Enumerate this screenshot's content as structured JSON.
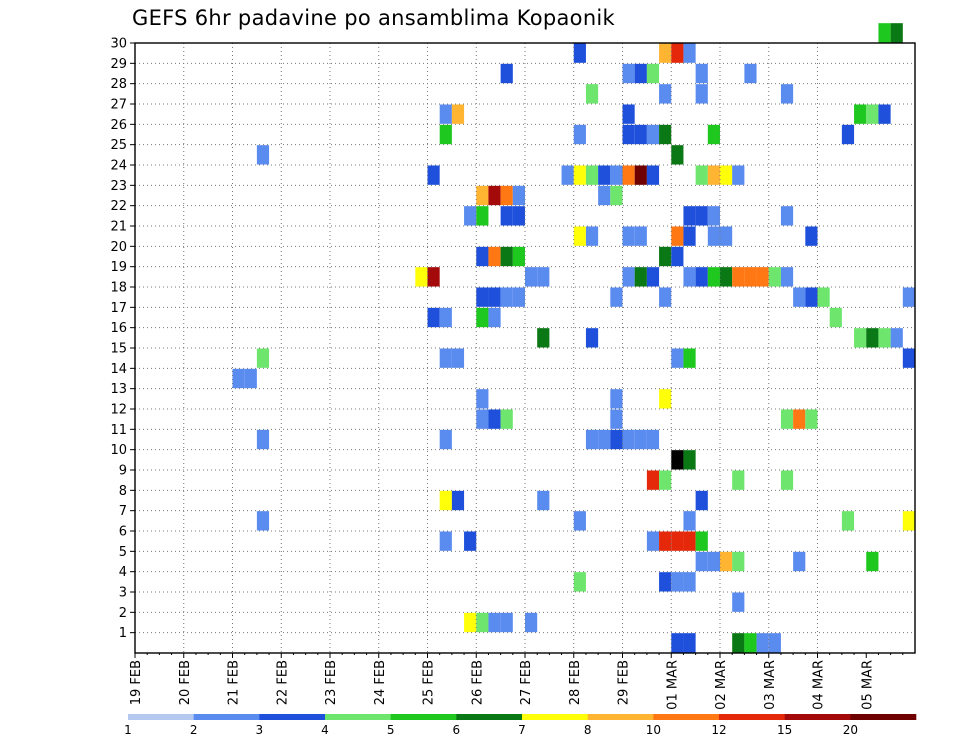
{
  "title": "GEFS 6hr padavine po ansamblima Kopaonik",
  "chart_data": {
    "type": "heatmap",
    "title": "GEFS 6hr padavine po ansamblima Kopaonik",
    "x_ticks": [
      "19 FEB",
      "20 FEB",
      "21 FEB",
      "22 FEB",
      "23 FEB",
      "24 FEB",
      "25 FEB",
      "26 FEB",
      "27 FEB",
      "28 FEB",
      "29 FEB",
      "01 MAR",
      "02 MAR",
      "03 MAR",
      "04 MAR",
      "05 MAR"
    ],
    "x_range": [
      0,
      64
    ],
    "x_step_hours": 6,
    "y_ticks": [
      1,
      2,
      3,
      4,
      5,
      6,
      7,
      8,
      9,
      10,
      11,
      12,
      13,
      14,
      15,
      16,
      17,
      18,
      19,
      20,
      21,
      22,
      23,
      24,
      25,
      26,
      27,
      28,
      29,
      30
    ],
    "y_range": [
      0,
      30
    ],
    "grid": true,
    "color_scale": {
      "labels": [
        "1",
        "2",
        "3",
        "4",
        "5",
        "6",
        "7",
        "8",
        "10",
        "12",
        "15",
        "20"
      ],
      "colors": [
        "#b4c8f0",
        "#5a8cf0",
        "#1e50dc",
        "#6ee66e",
        "#1ec81e",
        "#0a7814",
        "#ffff0a",
        "#ffb432",
        "#ff7814",
        "#e6280a",
        "#a50a0a",
        "#6e0000"
      ]
    },
    "cells_format": "[ensemble_member, step, class]",
    "cells": [
      [
        30,
        61,
        4
      ],
      [
        30,
        62,
        5
      ],
      [
        29,
        36,
        2
      ],
      [
        29,
        43,
        7
      ],
      [
        29,
        44,
        9
      ],
      [
        29,
        45,
        1
      ],
      [
        28,
        30,
        2
      ],
      [
        28,
        40,
        1
      ],
      [
        28,
        41,
        2
      ],
      [
        28,
        42,
        3
      ],
      [
        28,
        46,
        1
      ],
      [
        28,
        50,
        1
      ],
      [
        27,
        37,
        3
      ],
      [
        27,
        43,
        1
      ],
      [
        27,
        46,
        1
      ],
      [
        27,
        53,
        1
      ],
      [
        26,
        25,
        1
      ],
      [
        26,
        26,
        7
      ],
      [
        26,
        40,
        2
      ],
      [
        26,
        59,
        4
      ],
      [
        26,
        60,
        3
      ],
      [
        26,
        61,
        2
      ],
      [
        25,
        25,
        4
      ],
      [
        25,
        36,
        1
      ],
      [
        25,
        40,
        2
      ],
      [
        25,
        41,
        2
      ],
      [
        25,
        42,
        1
      ],
      [
        25,
        43,
        5
      ],
      [
        25,
        47,
        4
      ],
      [
        25,
        58,
        2
      ],
      [
        24,
        10,
        1
      ],
      [
        24,
        44,
        5
      ],
      [
        23,
        24,
        2
      ],
      [
        23,
        35,
        1
      ],
      [
        23,
        36,
        6
      ],
      [
        23,
        37,
        3
      ],
      [
        23,
        38,
        2
      ],
      [
        23,
        39,
        1
      ],
      [
        23,
        40,
        8
      ],
      [
        23,
        41,
        11
      ],
      [
        23,
        42,
        2
      ],
      [
        23,
        46,
        3
      ],
      [
        23,
        47,
        7
      ],
      [
        23,
        48,
        6
      ],
      [
        23,
        49,
        1
      ],
      [
        22,
        28,
        7
      ],
      [
        22,
        29,
        10
      ],
      [
        22,
        30,
        8
      ],
      [
        22,
        31,
        1
      ],
      [
        22,
        38,
        1
      ],
      [
        22,
        39,
        3
      ],
      [
        21,
        27,
        1
      ],
      [
        21,
        28,
        4
      ],
      [
        21,
        30,
        2
      ],
      [
        21,
        31,
        2
      ],
      [
        21,
        45,
        2
      ],
      [
        21,
        46,
        2
      ],
      [
        21,
        47,
        1
      ],
      [
        21,
        53,
        1
      ],
      [
        20,
        36,
        6
      ],
      [
        20,
        37,
        1
      ],
      [
        20,
        40,
        1
      ],
      [
        20,
        41,
        1
      ],
      [
        20,
        44,
        8
      ],
      [
        20,
        45,
        2
      ],
      [
        20,
        47,
        1
      ],
      [
        20,
        48,
        1
      ],
      [
        20,
        55,
        2
      ],
      [
        19,
        28,
        2
      ],
      [
        19,
        29,
        8
      ],
      [
        19,
        30,
        5
      ],
      [
        19,
        31,
        4
      ],
      [
        19,
        43,
        5
      ],
      [
        19,
        44,
        2
      ],
      [
        18,
        23,
        6
      ],
      [
        18,
        24,
        10
      ],
      [
        18,
        32,
        1
      ],
      [
        18,
        33,
        1
      ],
      [
        18,
        40,
        1
      ],
      [
        18,
        41,
        5
      ],
      [
        18,
        42,
        2
      ],
      [
        18,
        45,
        1
      ],
      [
        18,
        46,
        2
      ],
      [
        18,
        47,
        4
      ],
      [
        18,
        48,
        5
      ],
      [
        18,
        49,
        8
      ],
      [
        18,
        50,
        8
      ],
      [
        18,
        51,
        8
      ],
      [
        18,
        52,
        3
      ],
      [
        18,
        53,
        1
      ],
      [
        17,
        28,
        2
      ],
      [
        17,
        29,
        2
      ],
      [
        17,
        30,
        1
      ],
      [
        17,
        31,
        1
      ],
      [
        17,
        39,
        1
      ],
      [
        17,
        43,
        1
      ],
      [
        17,
        54,
        1
      ],
      [
        17,
        55,
        2
      ],
      [
        17,
        56,
        3
      ],
      [
        17,
        63,
        1
      ],
      [
        16,
        24,
        2
      ],
      [
        16,
        25,
        1
      ],
      [
        16,
        28,
        4
      ],
      [
        16,
        29,
        1
      ],
      [
        16,
        57,
        3
      ],
      [
        15,
        33,
        5
      ],
      [
        15,
        37,
        2
      ],
      [
        15,
        59,
        3
      ],
      [
        15,
        60,
        5
      ],
      [
        15,
        61,
        3
      ],
      [
        15,
        62,
        1
      ],
      [
        14,
        10,
        3
      ],
      [
        14,
        25,
        1
      ],
      [
        14,
        26,
        1
      ],
      [
        14,
        44,
        1
      ],
      [
        14,
        45,
        4
      ],
      [
        14,
        63,
        2
      ],
      [
        13,
        8,
        1
      ],
      [
        13,
        9,
        1
      ],
      [
        12,
        28,
        1
      ],
      [
        12,
        39,
        1
      ],
      [
        12,
        43,
        6
      ],
      [
        11,
        28,
        1
      ],
      [
        11,
        29,
        2
      ],
      [
        11,
        30,
        3
      ],
      [
        11,
        39,
        1
      ],
      [
        11,
        53,
        3
      ],
      [
        11,
        54,
        8
      ],
      [
        11,
        55,
        3
      ],
      [
        10,
        10,
        1
      ],
      [
        10,
        25,
        1
      ],
      [
        10,
        37,
        1
      ],
      [
        10,
        38,
        1
      ],
      [
        10,
        39,
        2
      ],
      [
        10,
        40,
        1
      ],
      [
        10,
        41,
        1
      ],
      [
        10,
        42,
        1
      ],
      [
        9,
        44,
        12
      ],
      [
        9,
        45,
        5
      ],
      [
        8,
        42,
        9
      ],
      [
        8,
        43,
        3
      ],
      [
        8,
        49,
        3
      ],
      [
        8,
        53,
        3
      ],
      [
        7,
        25,
        6
      ],
      [
        7,
        26,
        2
      ],
      [
        7,
        33,
        1
      ],
      [
        7,
        46,
        2
      ],
      [
        6,
        10,
        1
      ],
      [
        6,
        36,
        1
      ],
      [
        6,
        45,
        1
      ],
      [
        6,
        58,
        3
      ],
      [
        6,
        63,
        6
      ],
      [
        5,
        25,
        1
      ],
      [
        5,
        27,
        2
      ],
      [
        5,
        42,
        1
      ],
      [
        5,
        43,
        9
      ],
      [
        5,
        44,
        9
      ],
      [
        5,
        45,
        9
      ],
      [
        5,
        46,
        4
      ],
      [
        4,
        46,
        1
      ],
      [
        4,
        47,
        1
      ],
      [
        4,
        48,
        7
      ],
      [
        4,
        49,
        3
      ],
      [
        4,
        54,
        1
      ],
      [
        4,
        60,
        4
      ],
      [
        3,
        36,
        3
      ],
      [
        3,
        43,
        2
      ],
      [
        3,
        44,
        1
      ],
      [
        3,
        45,
        1
      ],
      [
        2,
        49,
        1
      ],
      [
        1,
        27,
        6
      ],
      [
        1,
        28,
        3
      ],
      [
        1,
        29,
        1
      ],
      [
        1,
        30,
        1
      ],
      [
        1,
        32,
        1
      ],
      [
        0,
        44,
        2
      ],
      [
        0,
        45,
        2
      ],
      [
        0,
        49,
        5
      ],
      [
        0,
        50,
        4
      ],
      [
        0,
        51,
        1
      ],
      [
        0,
        52,
        1
      ]
    ]
  }
}
